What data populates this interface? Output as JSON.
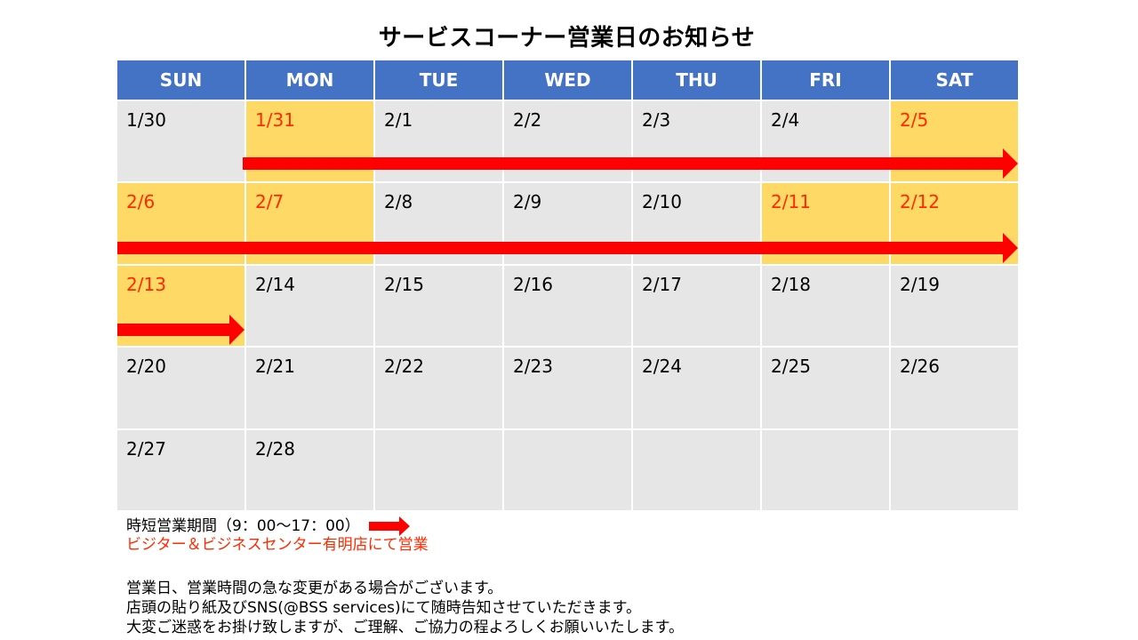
{
  "title": "サービスコーナー営業日のお知らせ",
  "weekdays": [
    "SUN",
    "MON",
    "TUE",
    "WED",
    "THU",
    "FRI",
    "SAT"
  ],
  "weeks": [
    [
      {
        "d": "1/30",
        "open": false
      },
      {
        "d": "1/31",
        "open": true
      },
      {
        "d": "2/1",
        "open": false
      },
      {
        "d": "2/2",
        "open": false
      },
      {
        "d": "2/3",
        "open": false
      },
      {
        "d": "2/4",
        "open": false
      },
      {
        "d": "2/5",
        "open": true
      }
    ],
    [
      {
        "d": "2/6",
        "open": true
      },
      {
        "d": "2/7",
        "open": true
      },
      {
        "d": "2/8",
        "open": false
      },
      {
        "d": "2/9",
        "open": false
      },
      {
        "d": "2/10",
        "open": false
      },
      {
        "d": "2/11",
        "open": true
      },
      {
        "d": "2/12",
        "open": true
      }
    ],
    [
      {
        "d": "2/13",
        "open": true
      },
      {
        "d": "2/14",
        "open": false
      },
      {
        "d": "2/15",
        "open": false
      },
      {
        "d": "2/16",
        "open": false
      },
      {
        "d": "2/17",
        "open": false
      },
      {
        "d": "2/18",
        "open": false
      },
      {
        "d": "2/19",
        "open": false
      }
    ],
    [
      {
        "d": "2/20",
        "open": false
      },
      {
        "d": "2/21",
        "open": false
      },
      {
        "d": "2/22",
        "open": false
      },
      {
        "d": "2/23",
        "open": false
      },
      {
        "d": "2/24",
        "open": false
      },
      {
        "d": "2/25",
        "open": false
      },
      {
        "d": "2/26",
        "open": false
      }
    ],
    [
      {
        "d": "2/27",
        "open": false
      },
      {
        "d": "2/28",
        "open": false
      },
      {
        "d": "",
        "open": false
      },
      {
        "d": "",
        "open": false
      },
      {
        "d": "",
        "open": false
      },
      {
        "d": "",
        "open": false
      },
      {
        "d": "",
        "open": false
      }
    ]
  ],
  "colors": {
    "header": "#4472c4",
    "open_cell": "#ffd966",
    "closed_cell": "#e7e6e6",
    "open_text": "#ff2a00",
    "arrow": "#ff0000"
  },
  "legend": {
    "period_label": "時短営業期間（9：00～17：00）",
    "location_label": "ビジター＆ビジネスセンター有明店にて営業"
  },
  "notice": {
    "lines": [
      "営業日、営業時間の急な変更がある場合がございます。",
      "店頭の貼り紙及びSNS(@BSS services)にて随時告知させていただきます。",
      "大変ご迷惑をお掛け致しますが、ご理解、ご協力の程よろしくお願いいたします。"
    ]
  }
}
